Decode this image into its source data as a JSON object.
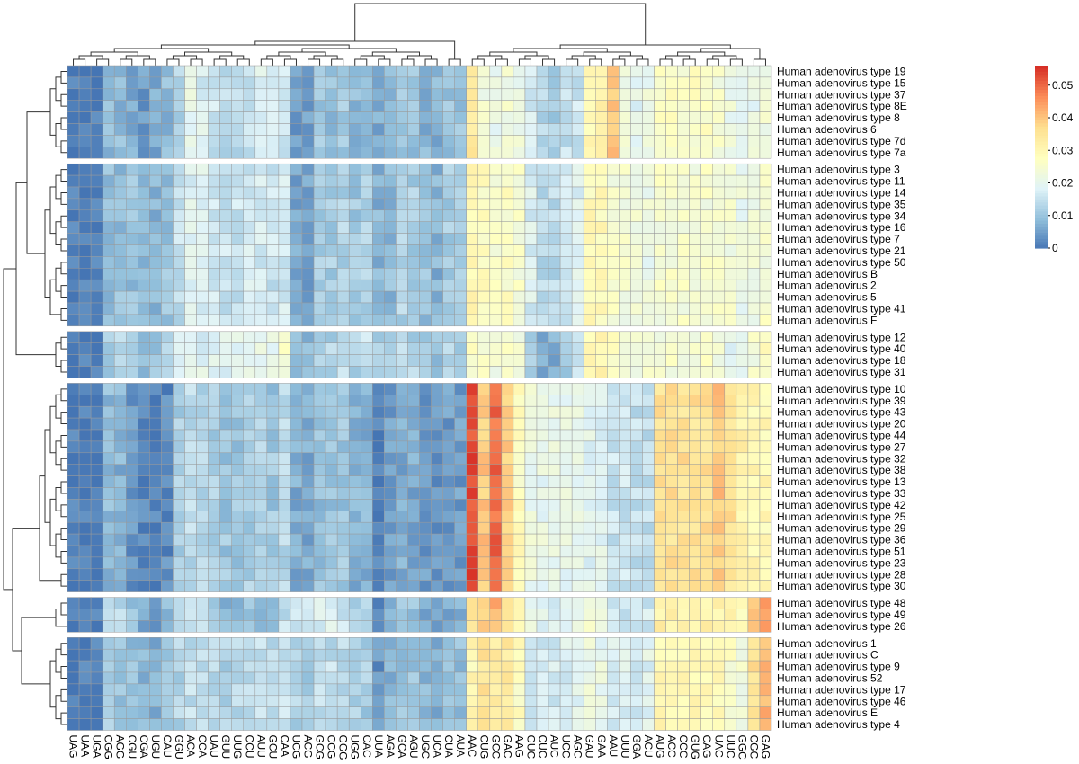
{
  "chart_data": {
    "type": "heatmap",
    "title": "",
    "xlabel": "",
    "ylabel": "",
    "value_range": [
      0,
      0.056
    ],
    "colorbar": {
      "ticks": [
        0,
        0.01,
        0.02,
        0.03,
        0.04,
        0.05
      ],
      "tick_labels": [
        "0",
        "0.01",
        "0.02",
        "0.03",
        "0.04",
        "0.05"
      ],
      "colors": [
        "#4575b4",
        "#91bfdb",
        "#e0f3f8",
        "#ffffbf",
        "#fee090",
        "#fc8d59",
        "#d73027"
      ]
    },
    "columns": [
      "UAG",
      "UAA",
      "UGA",
      "CGG",
      "AGG",
      "CGU",
      "CGA",
      "UGU",
      "CAU",
      "GGU",
      "ACA",
      "CCA",
      "UAU",
      "GUU",
      "UUG",
      "CCU",
      "AUU",
      "GCU",
      "CAA",
      "UCG",
      "ACG",
      "GCG",
      "CCG",
      "GGG",
      "UGG",
      "CAC",
      "UUA",
      "AGA",
      "GCA",
      "AGU",
      "UGC",
      "UCA",
      "CUA",
      "AUA",
      "AAC",
      "CUG",
      "GCC",
      "GAC",
      "AAG",
      "GUC",
      "CUC",
      "AUC",
      "UCC",
      "AGC",
      "GAU",
      "GAA",
      "AAU",
      "UUU",
      "GGA",
      "ACU",
      "AUG",
      "ACC",
      "CCC",
      "GUG",
      "CAG",
      "UAC",
      "UUC",
      "GGC",
      "CGC",
      "GAG"
    ],
    "row_groups": [
      [
        "Human adenovirus type 19",
        "Human adenovirus type 15",
        "Human adenovirus type 37",
        "Human adenovirus type 8E",
        "Human adenovirus type 8",
        "Human adenovirus 6",
        "Human adenovirus type 7d",
        "Human adenovirus type 7a"
      ],
      [
        "Human adenovirus type 3",
        "Human adenovirus type 11",
        "Human adenovirus type 14",
        "Human adenovirus type 35",
        "Human adenovirus type 34",
        "Human adenovirus type 16",
        "Human adenovirus type 7",
        "Human adenovirus type 21",
        "Human adenovirus type 50",
        "Human adenovirus B",
        "Human adenovirus 2",
        "Human adenovirus 5",
        "Human adenovirus type 41",
        "Human adenovirus F"
      ],
      [
        "Human adenovirus type 12",
        "Human adenovirus type 40",
        "Human adenovirus type 18",
        "Human adenovirus type 31"
      ],
      [
        "Human adenovirus type 10",
        "Human adenovirus type 39",
        "Human adenovirus type 43",
        "Human adenovirus type 20",
        "Human adenovirus type 44",
        "Human adenovirus type 27",
        "Human adenovirus type 32",
        "Human adenovirus type 38",
        "Human adenovirus type 13",
        "Human adenovirus type 33",
        "Human adenovirus type 42",
        "Human adenovirus type 25",
        "Human adenovirus type 29",
        "Human adenovirus type 36",
        "Human adenovirus type 51",
        "Human adenovirus type 23",
        "Human adenovirus type 28",
        "Human adenovirus type 30"
      ],
      [
        "Human adenovirus type 48",
        "Human adenovirus type 49",
        "Human adenovirus type 26"
      ],
      [
        "Human adenovirus 1",
        "Human adenovirus C",
        "Human adenovirus type 9",
        "Human adenovirus 52",
        "Human adenovirus type 17",
        "Human adenovirus type 46",
        "Human adenovirus E",
        "Human adenovirus type 4"
      ]
    ],
    "column_profiles": {
      "G1": [
        0.001,
        0.001,
        0.001,
        0.009,
        0.009,
        0.007,
        0.005,
        0.007,
        0.009,
        0.013,
        0.02,
        0.018,
        0.016,
        0.014,
        0.014,
        0.016,
        0.018,
        0.016,
        0.017,
        0.005,
        0.006,
        0.011,
        0.01,
        0.011,
        0.009,
        0.01,
        0.007,
        0.008,
        0.011,
        0.01,
        0.008,
        0.008,
        0.01,
        0.01,
        0.034,
        0.024,
        0.021,
        0.024,
        0.022,
        0.017,
        0.013,
        0.012,
        0.015,
        0.016,
        0.03,
        0.032,
        0.04,
        0.024,
        0.02,
        0.022,
        0.027,
        0.027,
        0.027,
        0.027,
        0.027,
        0.025,
        0.022,
        0.02,
        0.021,
        0.024
      ],
      "G2": [
        0.001,
        0.001,
        0.001,
        0.01,
        0.01,
        0.01,
        0.008,
        0.008,
        0.01,
        0.015,
        0.019,
        0.018,
        0.017,
        0.016,
        0.016,
        0.017,
        0.017,
        0.016,
        0.017,
        0.006,
        0.006,
        0.012,
        0.012,
        0.013,
        0.011,
        0.013,
        0.008,
        0.009,
        0.013,
        0.012,
        0.01,
        0.008,
        0.012,
        0.012,
        0.03,
        0.028,
        0.026,
        0.027,
        0.025,
        0.018,
        0.014,
        0.014,
        0.017,
        0.018,
        0.029,
        0.029,
        0.025,
        0.024,
        0.023,
        0.022,
        0.025,
        0.025,
        0.025,
        0.025,
        0.025,
        0.025,
        0.024,
        0.022,
        0.022,
        0.025
      ],
      "G3": [
        0.001,
        0.001,
        0.001,
        0.012,
        0.013,
        0.011,
        0.01,
        0.011,
        0.012,
        0.018,
        0.02,
        0.019,
        0.02,
        0.019,
        0.02,
        0.02,
        0.021,
        0.021,
        0.025,
        0.008,
        0.008,
        0.013,
        0.013,
        0.015,
        0.013,
        0.015,
        0.011,
        0.013,
        0.015,
        0.013,
        0.011,
        0.01,
        0.013,
        0.013,
        0.026,
        0.025,
        0.024,
        0.025,
        0.025,
        0.012,
        0.007,
        0.007,
        0.012,
        0.016,
        0.03,
        0.031,
        0.027,
        0.024,
        0.024,
        0.024,
        0.025,
        0.025,
        0.025,
        0.025,
        0.025,
        0.024,
        0.02,
        0.02,
        0.024,
        0.028
      ],
      "G4": [
        0.001,
        0.001,
        0.001,
        0.009,
        0.008,
        0.004,
        0.002,
        0.002,
        0.003,
        0.012,
        0.014,
        0.013,
        0.012,
        0.011,
        0.011,
        0.012,
        0.013,
        0.011,
        0.014,
        0.007,
        0.007,
        0.01,
        0.01,
        0.011,
        0.008,
        0.008,
        0.001,
        0.005,
        0.007,
        0.007,
        0.005,
        0.004,
        0.005,
        0.005,
        0.053,
        0.04,
        0.05,
        0.04,
        0.028,
        0.022,
        0.021,
        0.021,
        0.021,
        0.021,
        0.019,
        0.019,
        0.016,
        0.016,
        0.015,
        0.015,
        0.036,
        0.036,
        0.036,
        0.036,
        0.036,
        0.04,
        0.036,
        0.032,
        0.03,
        0.03
      ],
      "G5": [
        0.001,
        0.001,
        0.001,
        0.016,
        0.014,
        0.01,
        0.006,
        0.006,
        0.009,
        0.012,
        0.014,
        0.014,
        0.012,
        0.009,
        0.01,
        0.01,
        0.01,
        0.01,
        0.015,
        0.016,
        0.017,
        0.018,
        0.018,
        0.016,
        0.014,
        0.014,
        0.002,
        0.008,
        0.01,
        0.01,
        0.006,
        0.005,
        0.007,
        0.008,
        0.035,
        0.038,
        0.042,
        0.038,
        0.03,
        0.022,
        0.02,
        0.019,
        0.02,
        0.02,
        0.024,
        0.022,
        0.017,
        0.017,
        0.016,
        0.017,
        0.032,
        0.032,
        0.032,
        0.032,
        0.032,
        0.032,
        0.032,
        0.03,
        0.042,
        0.045
      ],
      "G6": [
        0.001,
        0.001,
        0.001,
        0.012,
        0.011,
        0.01,
        0.008,
        0.008,
        0.01,
        0.013,
        0.015,
        0.015,
        0.014,
        0.013,
        0.014,
        0.015,
        0.016,
        0.014,
        0.016,
        0.013,
        0.012,
        0.015,
        0.015,
        0.015,
        0.012,
        0.012,
        0.004,
        0.008,
        0.011,
        0.011,
        0.009,
        0.008,
        0.01,
        0.01,
        0.03,
        0.035,
        0.034,
        0.034,
        0.028,
        0.018,
        0.017,
        0.017,
        0.018,
        0.019,
        0.022,
        0.021,
        0.018,
        0.018,
        0.018,
        0.019,
        0.03,
        0.03,
        0.03,
        0.03,
        0.03,
        0.03,
        0.026,
        0.024,
        0.036,
        0.042
      ]
    },
    "cell_variation": "values vary per cell around each group profile (deterministic jitter)"
  }
}
